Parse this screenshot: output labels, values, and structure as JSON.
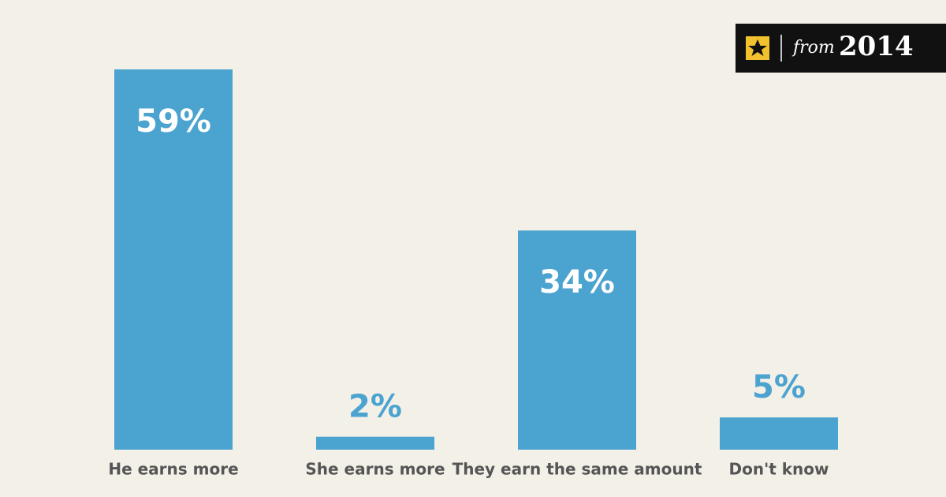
{
  "chart_data": {
    "type": "bar",
    "categories": [
      "He earns more",
      "She earns more",
      "They earn the same amount",
      "Don't know"
    ],
    "values": [
      59,
      2,
      34,
      5
    ],
    "value_labels": [
      "59%",
      "2%",
      "34%",
      "5%"
    ],
    "color": "#4ba3cf"
  },
  "badge": {
    "word": "from",
    "year": "2014"
  }
}
